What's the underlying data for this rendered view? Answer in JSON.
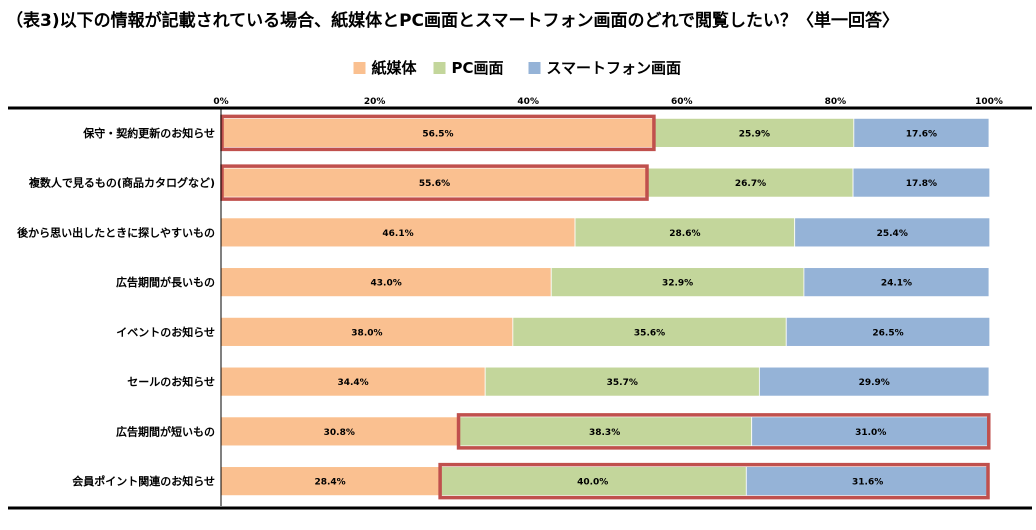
{
  "title": "（表3)以下の情報が記載されている場合、紙媒体とPC画面とスマートフォン画面のどれで閲覧したい？〈単一回答〉",
  "chart_data": {
    "type": "bar",
    "orientation": "horizontal",
    "stacked": "percent",
    "categories": [
      "保守・契約更新のお知らせ",
      "複数人で見るもの(商品カタログなど)",
      "後から思い出したときに探しやすいもの",
      "広告期間が長いもの",
      "イベントのお知らせ",
      "セールのお知らせ",
      "広告期間が短いもの",
      "会員ポイント関連のお知らせ"
    ],
    "series": [
      {
        "name": "紙媒体",
        "color": "#FAC090",
        "values": [
          56.5,
          55.6,
          46.1,
          43.0,
          38.0,
          34.4,
          30.8,
          28.4
        ]
      },
      {
        "name": "PC画面",
        "color": "#C3D69B",
        "values": [
          25.9,
          26.7,
          28.6,
          32.9,
          35.6,
          35.7,
          38.3,
          40.0
        ]
      },
      {
        "name": "スマートフォン画面",
        "color": "#95B3D7",
        "values": [
          17.6,
          17.8,
          25.4,
          24.1,
          26.5,
          29.9,
          31.0,
          31.6
        ]
      }
    ],
    "xlim": [
      0,
      100
    ],
    "xticks": [
      "0%",
      "20%",
      "40%",
      "60%",
      "80%",
      "100%"
    ],
    "value_format": "%",
    "legend_position": "top-center",
    "highlights": [
      {
        "category": "保守・契約更新のお知らせ",
        "series": [
          "紙媒体"
        ]
      },
      {
        "category": "複数人で見るもの(商品カタログなど)",
        "series": [
          "紙媒体"
        ]
      },
      {
        "category": "広告期間が短いもの",
        "series": [
          "PC画面",
          "スマートフォン画面"
        ]
      },
      {
        "category": "会員ポイント関連のお知らせ",
        "series": [
          "PC画面",
          "スマートフォン画面"
        ]
      }
    ],
    "highlight_color": "#C0504D"
  }
}
